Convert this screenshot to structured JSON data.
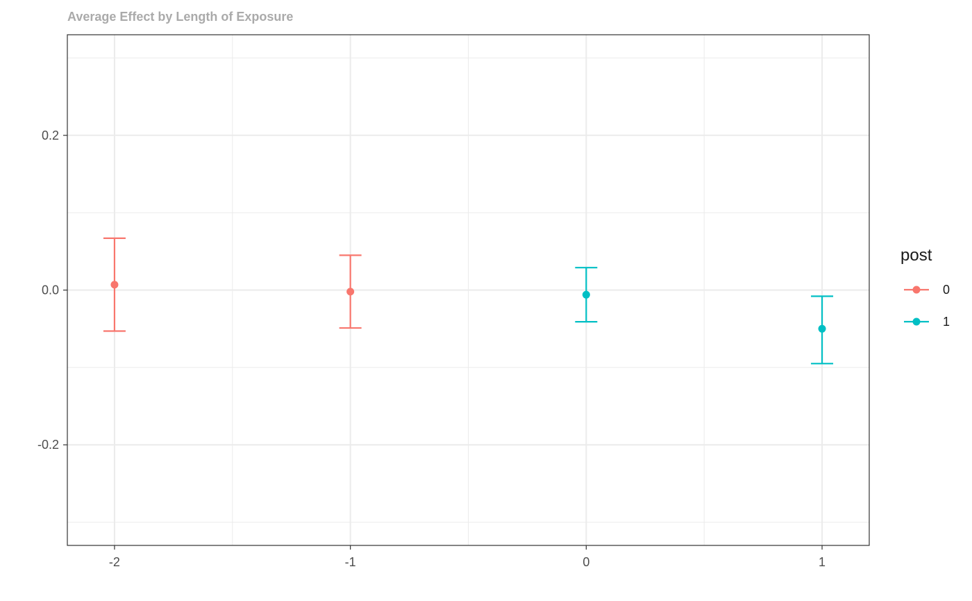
{
  "chart_data": {
    "type": "errorbar",
    "title": "Average Effect by Length of Exposure",
    "xlabel": "",
    "ylabel": "",
    "x_ticks": [
      "-2",
      "-1",
      "0",
      "1"
    ],
    "y_ticks": [
      "-0.2",
      "0.0",
      "0.2"
    ],
    "xlim": [
      -2.2,
      1.2
    ],
    "ylim": [
      -0.33,
      0.33
    ],
    "y_tick_values": [
      -0.2,
      0.0,
      0.2
    ],
    "y_minor_values": [
      -0.3,
      -0.1,
      0.1,
      0.3
    ],
    "x_minor_values": [
      -1.5,
      -0.5,
      0.5
    ],
    "grid": true,
    "legend": {
      "title": "post",
      "placement": "right",
      "entries": [
        {
          "label": "0",
          "color": "#F8766D"
        },
        {
          "label": "1",
          "color": "#00BFC4"
        }
      ]
    },
    "points": [
      {
        "x": -2,
        "y": 0.007,
        "lower": -0.053,
        "upper": 0.067,
        "post": "0"
      },
      {
        "x": -1,
        "y": -0.002,
        "lower": -0.049,
        "upper": 0.045,
        "post": "0"
      },
      {
        "x": 0,
        "y": -0.006,
        "lower": -0.041,
        "upper": 0.029,
        "post": "1"
      },
      {
        "x": 1,
        "y": -0.05,
        "lower": -0.095,
        "upper": -0.008,
        "post": "1"
      }
    ]
  }
}
